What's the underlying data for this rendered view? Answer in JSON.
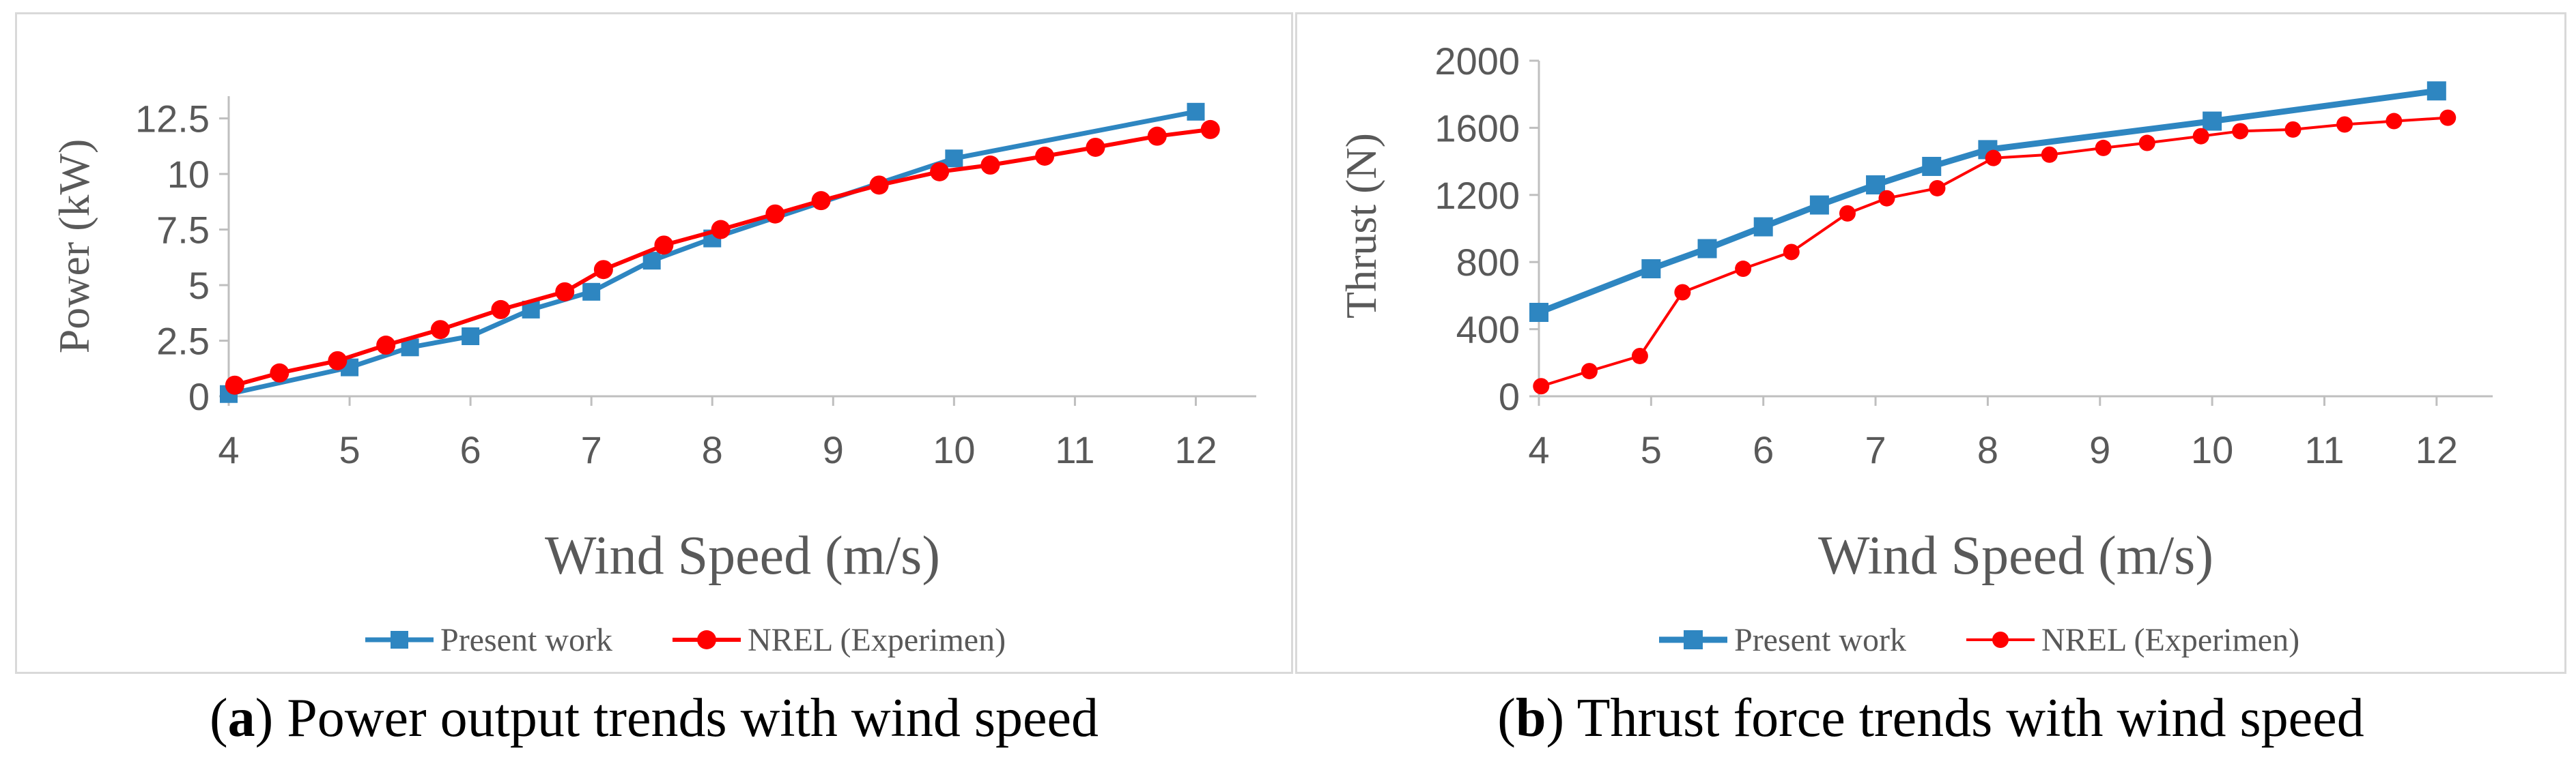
{
  "colors": {
    "present": "#2E86C1",
    "nrel": "#FF0000",
    "axis": "#bfbfbf",
    "text": "#595959"
  },
  "chart_data": [
    {
      "type": "line",
      "panel_label": "a",
      "caption": "Power output trends with wind speed",
      "xlabel": "Wind Speed (m/s)",
      "ylabel": "Power (kW)",
      "xlim": [
        4,
        12.5
      ],
      "ylim": [
        0,
        13.5
      ],
      "xticks": [
        4,
        5,
        6,
        7,
        8,
        9,
        10,
        11,
        12
      ],
      "yticks": [
        0,
        2.5,
        5,
        7.5,
        10,
        12.5
      ],
      "ytick_labels": [
        "0",
        "2.5",
        "5",
        "7.5",
        "10",
        "12.5"
      ],
      "legend_position": "bottom",
      "series": [
        {
          "name": "Present work",
          "marker": "square",
          "x": [
            4,
            5,
            5.5,
            6,
            6.5,
            7,
            7.5,
            8,
            10,
            12
          ],
          "y": [
            0.1,
            1.3,
            2.2,
            2.7,
            3.9,
            4.7,
            6.1,
            7.1,
            10.7,
            12.8
          ]
        },
        {
          "name": "NREL (Experimen)",
          "marker": "circle",
          "x": [
            4.05,
            4.42,
            4.9,
            5.3,
            5.75,
            6.25,
            6.78,
            7.1,
            7.6,
            8.07,
            8.52,
            8.9,
            9.38,
            9.88,
            10.3,
            10.75,
            11.17,
            11.68,
            12.12
          ],
          "y": [
            0.5,
            1.05,
            1.6,
            2.3,
            3.0,
            3.9,
            4.7,
            5.7,
            6.8,
            7.5,
            8.2,
            8.8,
            9.5,
            10.1,
            10.4,
            10.8,
            11.2,
            11.7,
            12.0
          ]
        }
      ]
    },
    {
      "type": "line",
      "panel_label": "b",
      "caption": "Thrust force trends with wind speed",
      "xlabel": "Wind Speed (m/s)",
      "ylabel": "Thrust (N)",
      "xlim": [
        4,
        12.5
      ],
      "ylim": [
        0,
        2000
      ],
      "xticks": [
        4,
        5,
        6,
        7,
        8,
        9,
        10,
        11,
        12
      ],
      "yticks": [
        0,
        400,
        800,
        1200,
        1600,
        2000
      ],
      "ytick_labels": [
        "0",
        "400",
        "800",
        "1200",
        "1600",
        "2000"
      ],
      "legend_position": "bottom",
      "series": [
        {
          "name": "Present work",
          "marker": "square",
          "x": [
            4,
            5,
            5.5,
            6,
            6.5,
            7,
            7.5,
            8,
            10,
            12
          ],
          "y": [
            500,
            760,
            880,
            1010,
            1140,
            1260,
            1370,
            1470,
            1640,
            1820
          ]
        },
        {
          "name": "NREL (Experimen)",
          "marker": "circle",
          "x": [
            4.02,
            4.45,
            4.9,
            5.28,
            5.82,
            6.25,
            6.75,
            7.1,
            7.55,
            8.05,
            8.55,
            9.03,
            9.42,
            9.9,
            10.25,
            10.72,
            11.18,
            11.62,
            12.1
          ],
          "y": [
            60,
            150,
            240,
            620,
            760,
            860,
            1090,
            1180,
            1240,
            1420,
            1440,
            1480,
            1510,
            1550,
            1580,
            1590,
            1620,
            1640,
            1660
          ]
        }
      ]
    }
  ]
}
